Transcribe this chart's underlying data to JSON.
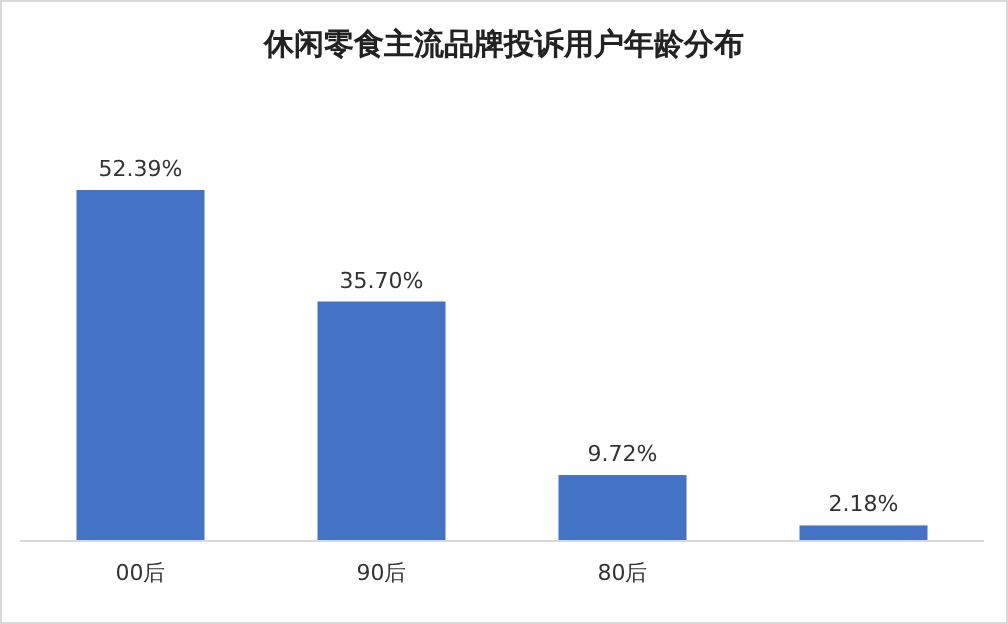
{
  "chart_data": {
    "type": "bar",
    "title": "休闲零食主流品牌投诉用户年龄分布",
    "categories": [
      "00后",
      "90后",
      "80后",
      null
    ],
    "values": [
      52.39,
      35.7,
      9.72,
      2.18
    ],
    "value_labels": [
      "52.39%",
      "35.70%",
      "9.72%",
      "2.18%"
    ],
    "color": "#4472c4"
  }
}
